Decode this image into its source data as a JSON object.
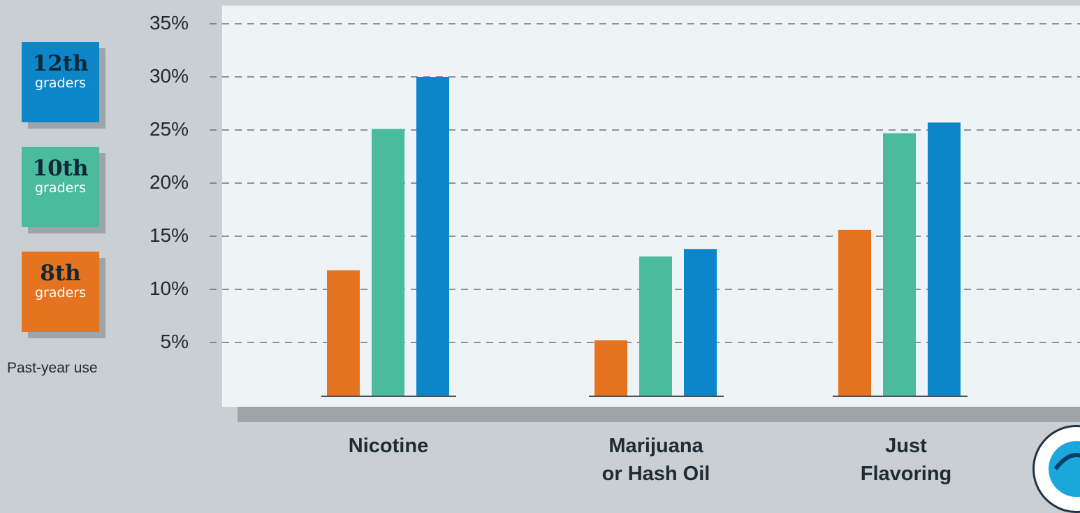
{
  "legend": {
    "items": [
      {
        "grade": "12th",
        "sub": "graders",
        "color": "#0c86c8"
      },
      {
        "grade": "10th",
        "sub": "graders",
        "color": "#4bbb9e"
      },
      {
        "grade": "8th",
        "sub": "graders",
        "color": "#e5731f"
      }
    ],
    "note": "Past-year use"
  },
  "chart_data": {
    "type": "bar",
    "categories": [
      "Nicotine",
      "Marijuana\nor Hash Oil",
      "Just\nFlavoring"
    ],
    "series": [
      {
        "name": "8th graders",
        "color": "#e5731f",
        "values": [
          11.8,
          5.2,
          15.6
        ]
      },
      {
        "name": "10th graders",
        "color": "#4bbb9e",
        "values": [
          25.1,
          13.1,
          24.7
        ]
      },
      {
        "name": "12th graders",
        "color": "#0c86c8",
        "values": [
          30.0,
          13.8,
          25.7
        ]
      }
    ],
    "yticks": [
      "5%",
      "10%",
      "15%",
      "20%",
      "25%",
      "30%",
      "35%"
    ],
    "ytick_values": [
      5,
      10,
      15,
      20,
      25,
      30,
      35
    ],
    "ylim": [
      0,
      35
    ],
    "grid": true,
    "title": "",
    "xlabel": "",
    "ylabel": ""
  }
}
